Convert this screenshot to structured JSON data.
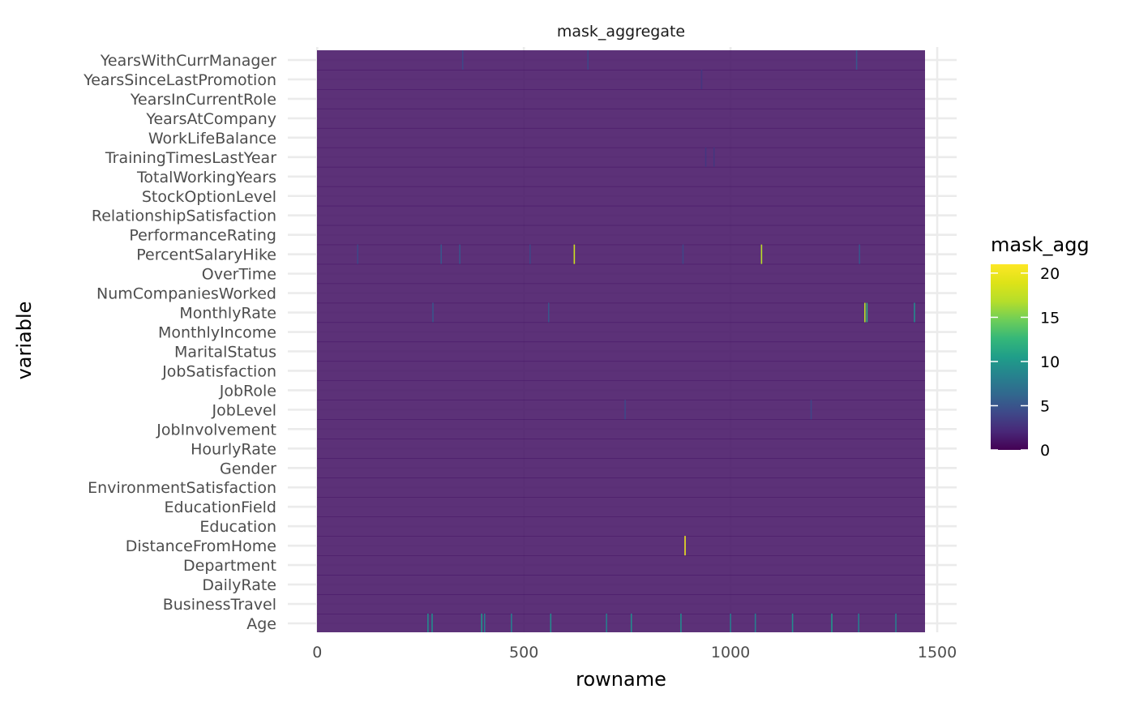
{
  "chart_data": {
    "type": "heatmap",
    "facet_title": "mask_aggregate",
    "xlabel": "rowname",
    "ylabel": "variable",
    "xlim": [
      -0.5,
      1470.5
    ],
    "x_ticks": [
      0,
      500,
      1000,
      1500
    ],
    "x_tick_labels": [
      "0",
      "500",
      "1000",
      "1500"
    ],
    "n_rows": 1470,
    "variables": [
      "Age",
      "BusinessTravel",
      "DailyRate",
      "Department",
      "DistanceFromHome",
      "Education",
      "EducationField",
      "EnvironmentSatisfaction",
      "Gender",
      "HourlyRate",
      "JobInvolvement",
      "JobLevel",
      "JobRole",
      "JobSatisfaction",
      "MaritalStatus",
      "MonthlyIncome",
      "MonthlyRate",
      "NumCompaniesWorked",
      "OverTime",
      "PercentSalaryHike",
      "PerformanceRating",
      "RelationshipSatisfaction",
      "StockOptionLevel",
      "TotalWorkingYears",
      "TrainingTimesLastYear",
      "WorkLifeBalance",
      "YearsAtCompany",
      "YearsInCurrentRole",
      "YearsSinceLastPromotion",
      "YearsWithCurrManager"
    ],
    "baseline_value": 1,
    "highlights": [
      {
        "variable": "YearsWithCurrManager",
        "x": 352,
        "value": 4
      },
      {
        "variable": "YearsWithCurrManager",
        "x": 655,
        "value": 4
      },
      {
        "variable": "YearsWithCurrManager",
        "x": 1305,
        "value": 5
      },
      {
        "variable": "YearsSinceLastPromotion",
        "x": 930,
        "value": 3
      },
      {
        "variable": "TrainingTimesLastYear",
        "x": 940,
        "value": 3
      },
      {
        "variable": "TrainingTimesLastYear",
        "x": 960,
        "value": 3
      },
      {
        "variable": "PercentSalaryHike",
        "x": 622,
        "value": 18
      },
      {
        "variable": "PercentSalaryHike",
        "x": 1075,
        "value": 17
      },
      {
        "variable": "PercentSalaryHike",
        "x": 98,
        "value": 4
      },
      {
        "variable": "PercentSalaryHike",
        "x": 300,
        "value": 5
      },
      {
        "variable": "PercentSalaryHike",
        "x": 345,
        "value": 5
      },
      {
        "variable": "PercentSalaryHike",
        "x": 515,
        "value": 4
      },
      {
        "variable": "PercentSalaryHike",
        "x": 885,
        "value": 4
      },
      {
        "variable": "PercentSalaryHike",
        "x": 1312,
        "value": 5
      },
      {
        "variable": "MonthlyRate",
        "x": 1325,
        "value": 17
      },
      {
        "variable": "MonthlyRate",
        "x": 1330,
        "value": 12
      },
      {
        "variable": "MonthlyRate",
        "x": 1445,
        "value": 9
      },
      {
        "variable": "MonthlyRate",
        "x": 280,
        "value": 5
      },
      {
        "variable": "MonthlyRate",
        "x": 560,
        "value": 5
      },
      {
        "variable": "JobLevel",
        "x": 745,
        "value": 4
      },
      {
        "variable": "JobLevel",
        "x": 1195,
        "value": 4
      },
      {
        "variable": "DistanceFromHome",
        "x": 890,
        "value": 20
      },
      {
        "variable": "Age",
        "x": 268,
        "value": 9
      },
      {
        "variable": "Age",
        "x": 278,
        "value": 9
      },
      {
        "variable": "Age",
        "x": 398,
        "value": 10
      },
      {
        "variable": "Age",
        "x": 405,
        "value": 8
      },
      {
        "variable": "Age",
        "x": 470,
        "value": 8
      },
      {
        "variable": "Age",
        "x": 565,
        "value": 9
      },
      {
        "variable": "Age",
        "x": 700,
        "value": 8
      },
      {
        "variable": "Age",
        "x": 760,
        "value": 9
      },
      {
        "variable": "Age",
        "x": 880,
        "value": 9
      },
      {
        "variable": "Age",
        "x": 1000,
        "value": 8
      },
      {
        "variable": "Age",
        "x": 1060,
        "value": 8
      },
      {
        "variable": "Age",
        "x": 1150,
        "value": 9
      },
      {
        "variable": "Age",
        "x": 1245,
        "value": 10
      },
      {
        "variable": "Age",
        "x": 1310,
        "value": 8
      },
      {
        "variable": "Age",
        "x": 1400,
        "value": 8
      }
    ],
    "legend": {
      "title": "mask_agg",
      "placement": "right",
      "range": [
        0,
        21
      ],
      "breaks": [
        0,
        5,
        10,
        15,
        20
      ],
      "break_labels": [
        "0",
        "5",
        "10",
        "15",
        "20"
      ],
      "palette": "viridis"
    },
    "grid": true
  }
}
